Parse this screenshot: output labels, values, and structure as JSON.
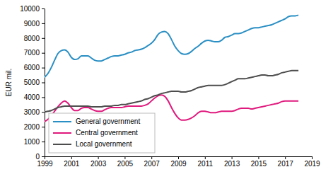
{
  "chart_data": {
    "type": "line",
    "y_label": "EUR mil.",
    "x": [
      1999,
      1999.25,
      1999.5,
      1999.75,
      2000,
      2000.25,
      2000.5,
      2000.75,
      2001,
      2001.25,
      2001.5,
      2001.75,
      2002,
      2002.25,
      2002.5,
      2002.75,
      2003,
      2003.25,
      2003.5,
      2003.75,
      2004,
      2004.25,
      2004.5,
      2004.75,
      2005,
      2005.25,
      2005.5,
      2005.75,
      2006,
      2006.25,
      2006.5,
      2006.75,
      2007,
      2007.25,
      2007.5,
      2007.75,
      2008,
      2008.25,
      2008.5,
      2008.75,
      2009,
      2009.25,
      2009.5,
      2009.75,
      2010,
      2010.25,
      2010.5,
      2010.75,
      2011,
      2011.25,
      2011.5,
      2011.75,
      2012,
      2012.25,
      2012.5,
      2012.75,
      2013,
      2013.25,
      2013.5,
      2013.75,
      2014,
      2014.25,
      2014.5,
      2014.75,
      2015,
      2015.25,
      2015.5,
      2015.75,
      2016,
      2016.25,
      2016.5,
      2016.75,
      2017,
      2017.25,
      2017.5,
      2017.75,
      2018
    ],
    "series": [
      {
        "name": "General government",
        "color": "#2a8fc4",
        "values": [
          5350,
          5600,
          6000,
          6500,
          6950,
          7150,
          7200,
          7050,
          6700,
          6550,
          6600,
          6800,
          6800,
          6800,
          6650,
          6500,
          6450,
          6450,
          6550,
          6650,
          6750,
          6800,
          6800,
          6850,
          6900,
          7000,
          7050,
          7150,
          7200,
          7250,
          7350,
          7500,
          7650,
          7900,
          8250,
          8400,
          8450,
          8300,
          7900,
          7450,
          7150,
          6950,
          6900,
          6950,
          7100,
          7300,
          7450,
          7650,
          7800,
          7850,
          7800,
          7750,
          7750,
          7850,
          8050,
          8100,
          8200,
          8300,
          8300,
          8350,
          8450,
          8550,
          8650,
          8700,
          8700,
          8750,
          8800,
          8850,
          8900,
          9000,
          9100,
          9200,
          9300,
          9450,
          9500,
          9500,
          9550
        ]
      },
      {
        "name": "Central government",
        "color": "#e0197d",
        "values": [
          2350,
          2500,
          2750,
          3050,
          3350,
          3600,
          3750,
          3600,
          3300,
          3100,
          3100,
          3250,
          3300,
          3300,
          3200,
          3100,
          3050,
          3050,
          3150,
          3250,
          3300,
          3300,
          3300,
          3300,
          3350,
          3400,
          3400,
          3400,
          3400,
          3400,
          3450,
          3550,
          3750,
          3950,
          4100,
          4150,
          4050,
          3750,
          3300,
          2900,
          2600,
          2450,
          2450,
          2500,
          2600,
          2750,
          2950,
          3050,
          3050,
          3000,
          2950,
          2950,
          3000,
          3050,
          3050,
          3050,
          3050,
          3100,
          3200,
          3250,
          3250,
          3250,
          3200,
          3250,
          3300,
          3350,
          3400,
          3450,
          3500,
          3550,
          3600,
          3700,
          3750,
          3750,
          3750,
          3750,
          3750
        ]
      },
      {
        "name": "Local government",
        "color": "#4d4d4d",
        "values": [
          3000,
          3050,
          3100,
          3200,
          3300,
          3350,
          3400,
          3400,
          3400,
          3400,
          3400,
          3400,
          3400,
          3400,
          3350,
          3350,
          3350,
          3350,
          3400,
          3400,
          3400,
          3450,
          3450,
          3500,
          3500,
          3550,
          3600,
          3650,
          3700,
          3750,
          3850,
          3900,
          4000,
          4100,
          4150,
          4250,
          4300,
          4350,
          4400,
          4400,
          4400,
          4350,
          4350,
          4400,
          4450,
          4550,
          4650,
          4700,
          4750,
          4800,
          4800,
          4800,
          4800,
          4800,
          4850,
          4950,
          5050,
          5150,
          5250,
          5250,
          5250,
          5300,
          5350,
          5400,
          5450,
          5500,
          5500,
          5450,
          5450,
          5500,
          5550,
          5650,
          5700,
          5750,
          5800,
          5800,
          5800
        ]
      }
    ],
    "xlim": [
      1999,
      2019
    ],
    "xticks": [
      1999,
      2001,
      2003,
      2005,
      2007,
      2009,
      2011,
      2013,
      2015,
      2017,
      2019
    ],
    "ylim": [
      0,
      10000
    ],
    "yticks": [
      0,
      1000,
      2000,
      3000,
      4000,
      5000,
      6000,
      7000,
      8000,
      9000,
      10000
    ],
    "grid": false,
    "legend": "lower left"
  }
}
